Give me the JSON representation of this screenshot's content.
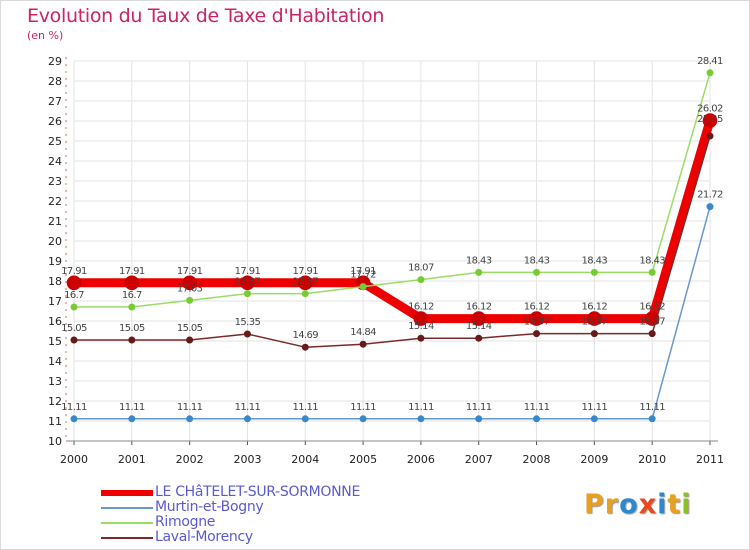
{
  "header": {
    "title": "Evolution du Taux de Taxe d'Habitation",
    "unit": "(en %)"
  },
  "brand": {
    "text": "Proxiti",
    "letter_colors": [
      "#e8a020",
      "#e8a020",
      "#2a8ad0",
      "#e84a20",
      "#2a8ad0",
      "#e8a020",
      "#8ac020"
    ]
  },
  "chart_data": {
    "type": "line",
    "title": "Evolution du Taux de Taxe d'Habitation",
    "ylabel": "(en %)",
    "xlabel": "",
    "x": [
      "2000",
      "2001",
      "2002",
      "2003",
      "2004",
      "2005",
      "2006",
      "2007",
      "2008",
      "2009",
      "2010",
      "2011"
    ],
    "ylim": [
      10,
      29
    ],
    "yticks": [
      "10",
      "11",
      "12",
      "13",
      "14",
      "15",
      "16",
      "17",
      "18",
      "19",
      "20",
      "21",
      "22",
      "23",
      "24",
      "25",
      "26",
      "27",
      "28",
      "29"
    ],
    "grid": true,
    "legend_position": "bottom-left",
    "series": [
      {
        "name": "LE CHâTELET-SUR-SORMONNE",
        "color": "#ee0000",
        "marker_color": "#cc0000",
        "values": [
          17.91,
          17.91,
          17.91,
          17.91,
          17.91,
          17.91,
          16.12,
          16.12,
          16.12,
          16.12,
          16.12,
          26.02
        ],
        "labels": [
          "17.91",
          "17.91",
          "17.91",
          "17.91",
          "17.91",
          "17.91",
          "16.12",
          "16.12",
          "16.12",
          "16.12",
          "16.12",
          "26.02"
        ]
      },
      {
        "name": "Murtin-et-Bogny",
        "color": "#6699cc",
        "marker_color": "#3a88cc",
        "values": [
          11.11,
          11.11,
          11.11,
          11.11,
          11.11,
          11.11,
          11.11,
          11.11,
          11.11,
          11.11,
          11.11,
          21.72
        ],
        "labels": [
          "11.11",
          "11.11",
          "11.11",
          "11.11",
          "11.11",
          "11.11",
          "11.11",
          "11.11",
          "11.11",
          "11.11",
          "11.11",
          "21.72"
        ]
      },
      {
        "name": "Rimogne",
        "color": "#99dd66",
        "marker_color": "#77cc33",
        "values": [
          16.7,
          16.7,
          17.03,
          17.37,
          17.37,
          17.72,
          18.07,
          18.43,
          18.43,
          18.43,
          18.43,
          28.41
        ],
        "labels": [
          "16.7",
          "16.7",
          "17.03",
          "17.37",
          "17.37",
          "17.72",
          "18.07",
          "18.43",
          "18.43",
          "18.43",
          "18.43",
          "28.41"
        ]
      },
      {
        "name": "Laval-Morency",
        "color": "#7a2a2a",
        "marker_color": "#661a1a",
        "values": [
          15.05,
          15.05,
          15.05,
          15.35,
          14.69,
          14.84,
          15.14,
          15.14,
          15.37,
          15.37,
          15.37,
          25.25
        ],
        "labels": [
          "15.05",
          "15.05",
          "15.05",
          "15.35",
          "14.69",
          "14.84",
          "15.14",
          "15.14",
          "15.37",
          "15.37",
          "15.37",
          "25.25"
        ]
      }
    ]
  }
}
